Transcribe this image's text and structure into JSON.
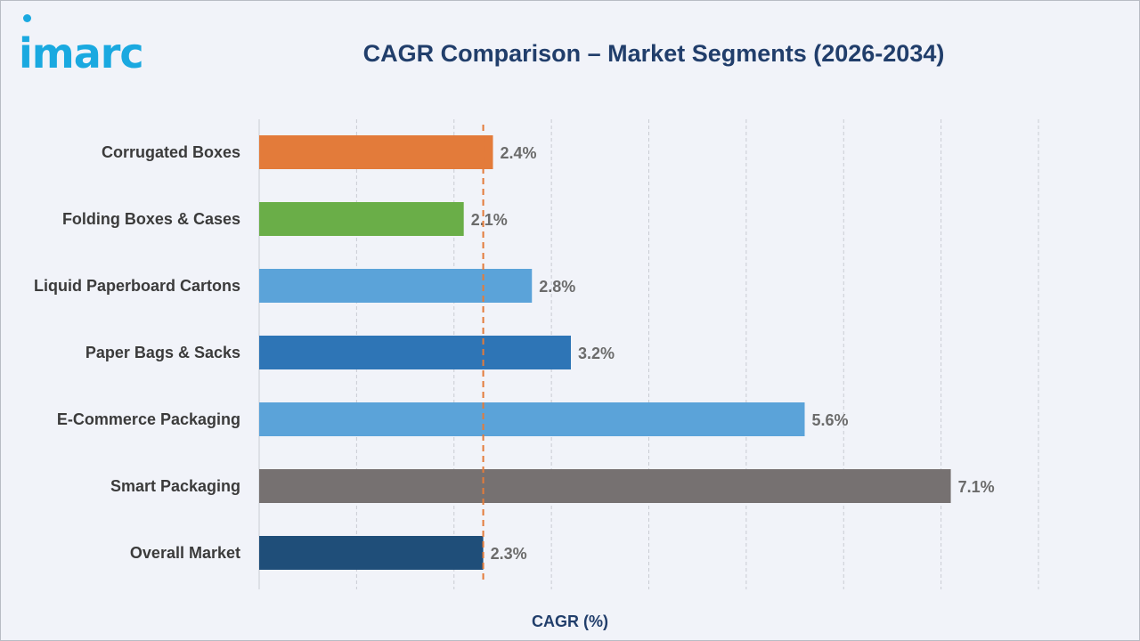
{
  "brand": {
    "logo_text": "imarc"
  },
  "chart_data": {
    "type": "bar",
    "orientation": "horizontal",
    "title": "CAGR Comparison – Market Segments (2026-2034)",
    "xlabel": "CAGR (%)",
    "ylabel": "",
    "xlim": [
      0,
      8
    ],
    "grid": true,
    "categories": [
      "Corrugated Boxes",
      "Folding Boxes & Cases",
      "Liquid Paperboard Cartons",
      "Paper Bags & Sacks",
      "E-Commerce Packaging",
      "Smart Packaging",
      "Overall Market"
    ],
    "values": [
      2.4,
      2.1,
      2.8,
      3.2,
      5.6,
      7.1,
      2.3
    ],
    "value_labels": [
      "2.4%",
      "2.1%",
      "2.8%",
      "3.2%",
      "5.6%",
      "7.1%",
      "2.3%"
    ],
    "colors": [
      "#e37b3a",
      "#6aae48",
      "#5ba3d9",
      "#2e75b6",
      "#5ba3d9",
      "#767171",
      "#1f4e79"
    ],
    "reference_line": {
      "value": 2.3,
      "color": "#e37b3a",
      "style": "dashed"
    }
  }
}
